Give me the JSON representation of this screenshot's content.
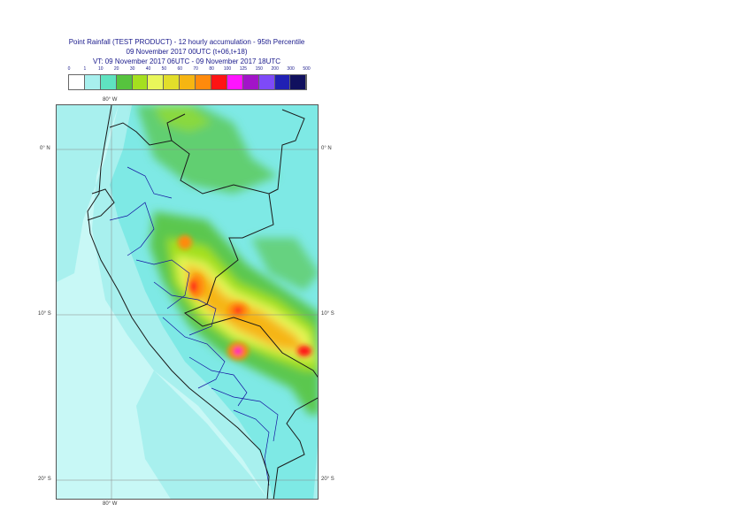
{
  "title": {
    "line1": "Point Rainfall (TEST PRODUCT) - 12 hourly accumulation - 95th Percentile",
    "line2": "09 November 2017 00UTC (t+06,t+18)",
    "line3": "VT: 09 November 2017 06UTC - 09 November 2017 18UTC"
  },
  "legend": {
    "labels": [
      "0",
      "1",
      "10",
      "20",
      "30",
      "40",
      "50",
      "60",
      "70",
      "80",
      "100",
      "125",
      "150",
      "200",
      "300",
      "500"
    ],
    "colors": [
      "#ffffff",
      "#a8f0ee",
      "#5fe3c0",
      "#56c33e",
      "#a5e01f",
      "#e9f75a",
      "#e2de2a",
      "#f6b512",
      "#ff8a0c",
      "#ff1414",
      "#ff14ff",
      "#a214c8",
      "#7e4af8",
      "#2020b4",
      "#10105e"
    ]
  },
  "map": {
    "lon_labels": {
      "top": "80° W",
      "bottom": "80° W"
    },
    "lat_labels": [
      "0° N",
      "10° S",
      "20° S"
    ],
    "colors": {
      "ocean_light": "#c8f8f6",
      "ocean": "#a8f0ee",
      "land_cyan": "#7ee9e5",
      "border": "#1a1a1a",
      "admin": "#1414a0"
    }
  }
}
